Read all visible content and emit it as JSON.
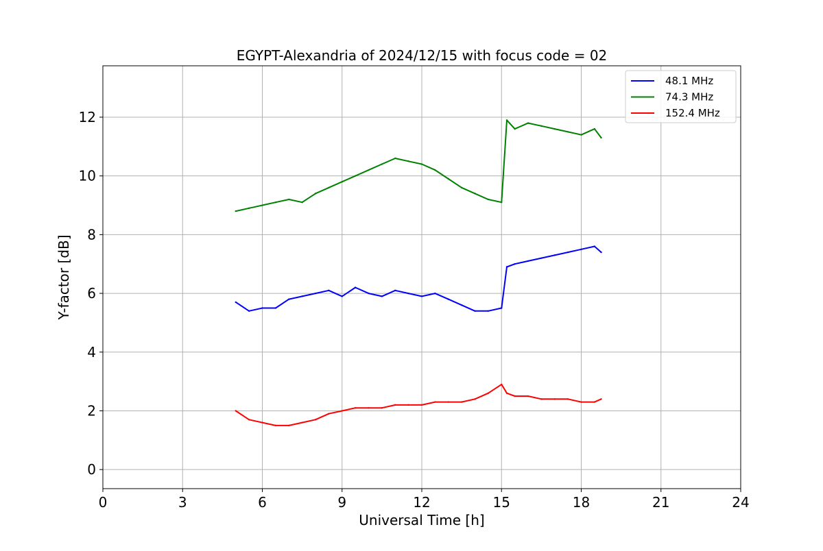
{
  "chart_data": {
    "type": "line",
    "title": "EGYPT-Alexandria of 2024/12/15 with focus code = 02",
    "xlabel": "Universal Time [h]",
    "ylabel": "Y-factor [dB]",
    "xlim": [
      0,
      24
    ],
    "ylim": [
      -0.65,
      13.75
    ],
    "xticks": [
      0,
      3,
      6,
      9,
      12,
      15,
      18,
      21,
      24
    ],
    "yticks": [
      0,
      2,
      4,
      6,
      8,
      10,
      12
    ],
    "xtick_labels": [
      "0",
      "3",
      "6",
      "9",
      "12",
      "15",
      "18",
      "21",
      "24"
    ],
    "ytick_labels": [
      "0",
      "2",
      "4",
      "6",
      "8",
      "10",
      "12"
    ],
    "grid": true,
    "legend_position": "top-right",
    "series": [
      {
        "name": "  48.1 MHz",
        "color": "#0000ff",
        "x": [
          5.0,
          5.5,
          6.0,
          6.5,
          7.0,
          7.5,
          8.0,
          8.5,
          9.0,
          9.5,
          10.0,
          10.5,
          11.0,
          11.5,
          12.0,
          12.5,
          13.0,
          13.5,
          14.0,
          14.5,
          15.0,
          15.2,
          15.5,
          16.0,
          16.5,
          17.0,
          17.5,
          18.0,
          18.5,
          18.75
        ],
        "values": [
          5.7,
          5.4,
          5.5,
          5.5,
          5.8,
          5.9,
          6.0,
          6.1,
          5.9,
          6.2,
          6.0,
          5.9,
          6.1,
          6.0,
          5.9,
          6.0,
          5.8,
          5.6,
          5.4,
          5.4,
          5.5,
          6.9,
          7.0,
          7.1,
          7.2,
          7.3,
          7.4,
          7.5,
          7.6,
          7.4
        ]
      },
      {
        "name": "  74.3 MHz",
        "color": "#008000",
        "x": [
          5.0,
          5.5,
          6.0,
          6.5,
          7.0,
          7.5,
          8.0,
          8.5,
          9.0,
          9.5,
          10.0,
          10.5,
          11.0,
          11.5,
          12.0,
          12.5,
          13.0,
          13.5,
          14.0,
          14.5,
          15.0,
          15.2,
          15.5,
          16.0,
          16.5,
          17.0,
          17.5,
          18.0,
          18.5,
          18.75
        ],
        "values": [
          8.8,
          8.9,
          9.0,
          9.1,
          9.2,
          9.1,
          9.4,
          9.6,
          9.8,
          10.0,
          10.2,
          10.4,
          10.6,
          10.5,
          10.4,
          10.2,
          9.9,
          9.6,
          9.4,
          9.2,
          9.1,
          11.9,
          11.6,
          11.8,
          11.7,
          11.6,
          11.5,
          11.4,
          11.6,
          11.3
        ]
      },
      {
        "name": "152.4 MHz",
        "color": "#ff0000",
        "x": [
          5.0,
          5.5,
          6.0,
          6.5,
          7.0,
          7.5,
          8.0,
          8.5,
          9.0,
          9.5,
          10.0,
          10.5,
          11.0,
          11.5,
          12.0,
          12.5,
          13.0,
          13.5,
          14.0,
          14.5,
          15.0,
          15.2,
          15.5,
          16.0,
          16.5,
          17.0,
          17.5,
          18.0,
          18.5,
          18.75
        ],
        "values": [
          2.0,
          1.7,
          1.6,
          1.5,
          1.5,
          1.6,
          1.7,
          1.9,
          2.0,
          2.1,
          2.1,
          2.1,
          2.2,
          2.2,
          2.2,
          2.3,
          2.3,
          2.3,
          2.4,
          2.6,
          2.9,
          2.6,
          2.5,
          2.5,
          2.4,
          2.4,
          2.4,
          2.3,
          2.3,
          2.4
        ]
      }
    ]
  }
}
